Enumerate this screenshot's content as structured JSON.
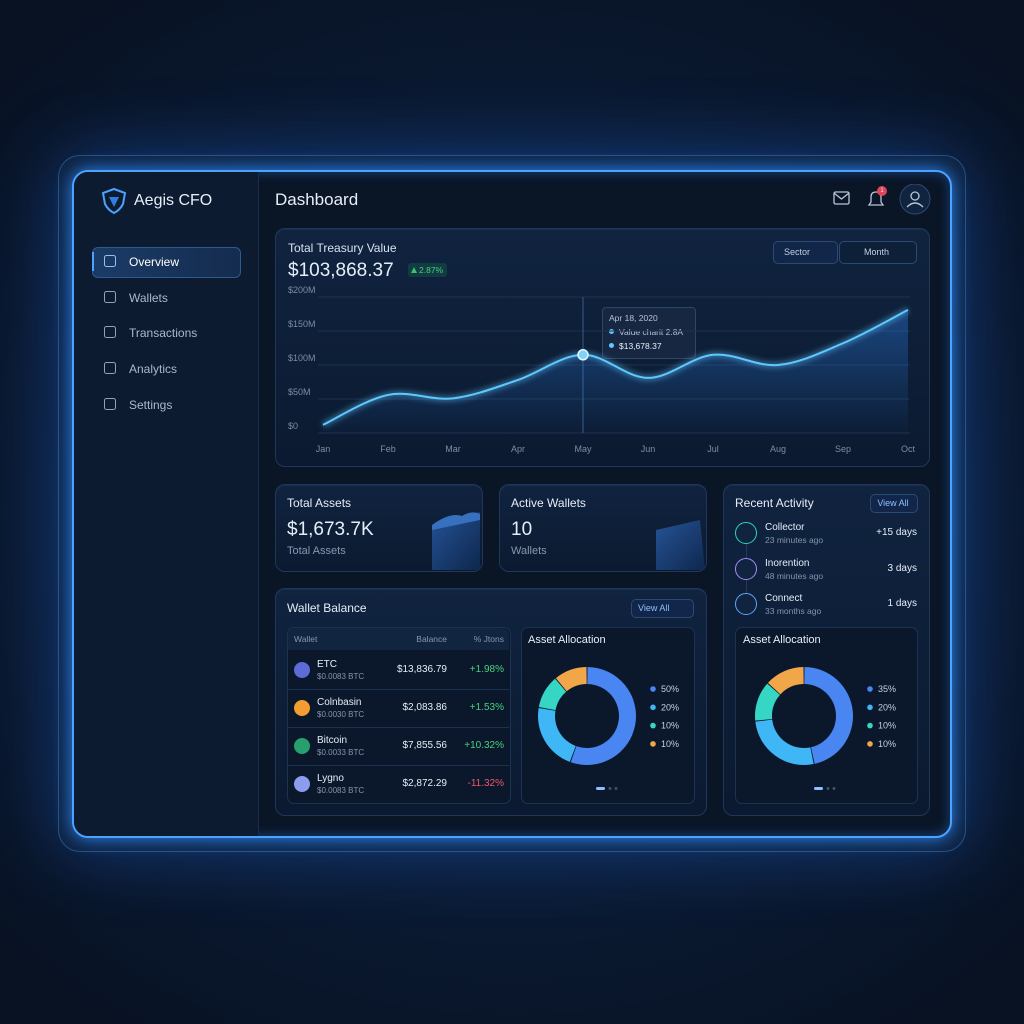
{
  "sidebar": {
    "brand": "Aegis CFO",
    "nav": [
      "Overview",
      "Wallets",
      "Transactions",
      "Analytics",
      "Settings"
    ]
  },
  "header": {
    "title": "Dashboard",
    "notifications": "1"
  },
  "treasury": {
    "title": "Total Treasury Value",
    "value": "$103,868.37",
    "change": "2.87%",
    "filters": [
      "Sector",
      "Month"
    ],
    "tooltip": {
      "date": "Apr 18, 2020",
      "label": "Value charit 2.8A",
      "value": "$13,678.37"
    }
  },
  "cards": [
    {
      "title": "Total Assets",
      "value": "$1,673.7K",
      "caption": "Total Assets"
    },
    {
      "title": "Active Wallets",
      "value": "10",
      "caption": "Wallets"
    }
  ],
  "wallet_balance": {
    "title": "Wallet Balance",
    "action": "View All",
    "table": {
      "header": [
        "Wallet",
        "Balance",
        "% Jtons"
      ],
      "rows": [
        [
          "ETC",
          "$0.0083 BTC",
          "$13,836.79",
          "+1.98%"
        ],
        [
          "Colnbasin",
          "$0.0030 BTC",
          "$2,083.86",
          "+1.53%"
        ],
        [
          "Bitcoin",
          "$0.0033 BTC",
          "$7,855.56",
          "+10.32%"
        ],
        [
          "Lygno",
          "$0.0083 BTC",
          "$2,872.29",
          "-11.32%"
        ]
      ]
    }
  },
  "recent_activity": {
    "title": "Recent Activity",
    "action": "View All",
    "items": [
      {
        "name": "Collector",
        "time": "23 minutes ago",
        "value": "+15 days"
      },
      {
        "name": "Inorention",
        "time": "48 minutes ago",
        "value": "3 days"
      },
      {
        "name": "Connect",
        "time": "33 months ago",
        "value": "1 days"
      }
    ]
  },
  "chart_data": [
    {
      "type": "line",
      "categories": [
        "Jan",
        "Feb",
        "Mar",
        "Apr",
        "May",
        "Jun",
        "Jul",
        "Aug",
        "Sep",
        "Oct"
      ],
      "series": [
        {
          "color": "#5ec8ff",
          "values": [
            12,
            56,
            51,
            78,
            115,
            81,
            115,
            100,
            132,
            181
          ]
        }
      ],
      "ylim": [
        0,
        200
      ],
      "yticks": [
        {
          "value": 0,
          "label": "$0"
        },
        {
          "value": 50,
          "label": "$50M"
        },
        {
          "value": 100,
          "label": "$100M"
        },
        {
          "value": 150,
          "label": "$150M"
        },
        {
          "value": 200,
          "label": "$200M"
        }
      ],
      "grid": true
    },
    {
      "type": "donut",
      "title": "Asset Allocation",
      "values": [
        50,
        20,
        10,
        10
      ],
      "value_labels": [
        "50%",
        "20%",
        "10%",
        "10%"
      ],
      "colors": [
        "#4a86f2",
        "#3fb6f5",
        "#35d6c4",
        "#f2a64a"
      ]
    },
    {
      "type": "donut",
      "title": "Asset Allocation",
      "values": [
        35,
        20,
        10,
        10
      ],
      "value_labels": [
        "35%",
        "20%",
        "10%",
        "10%"
      ],
      "colors": [
        "#4a86f2",
        "#3fb6f5",
        "#35d6c4",
        "#f2a64a"
      ]
    }
  ]
}
